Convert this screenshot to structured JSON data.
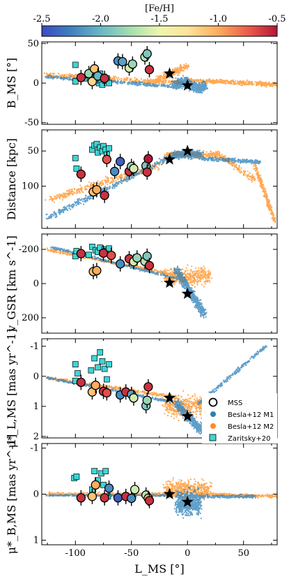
{
  "colorbar": {
    "label": "[Fe/H]",
    "ticks": [
      -2.5,
      -2.0,
      -1.5,
      -1.0,
      -0.5
    ],
    "tick_labels": [
      "-2.5",
      "-2.0",
      "-1.5",
      "-1.0",
      "-0.5"
    ],
    "range": [
      -2.5,
      -0.5
    ]
  },
  "colors": {
    "m1": "#2c7fb8",
    "m2": "#ff8c1a",
    "zaritsky": "#3fd5d5",
    "star": "#000000"
  },
  "legend": {
    "items": [
      {
        "label": "MSS",
        "marker": "circle-open"
      },
      {
        "label": "Besla+12 M1",
        "marker": "dot-m1"
      },
      {
        "label": "Besla+12 M2",
        "marker": "dot-m2"
      },
      {
        "label": "Zaritsky+20",
        "marker": "square"
      }
    ]
  },
  "chart_data": [
    {
      "type": "scatter",
      "ylabel": "B_MS [°]",
      "ylim": [
        52,
        -52
      ],
      "yticks": [
        -50,
        0,
        50
      ],
      "mss": [
        {
          "x": -95,
          "y": 7,
          "feh": -0.6
        },
        {
          "x": -88,
          "y": 12,
          "feh": -1.8
        },
        {
          "x": -85,
          "y": 2,
          "feh": -1.2
        },
        {
          "x": -83,
          "y": 18,
          "feh": -1.1
        },
        {
          "x": -80,
          "y": 9,
          "feh": -2.0
        },
        {
          "x": -74,
          "y": 6,
          "feh": -0.6
        },
        {
          "x": -62,
          "y": 28,
          "feh": -2.2
        },
        {
          "x": -58,
          "y": 27,
          "feh": -2.1
        },
        {
          "x": -52,
          "y": 19,
          "feh": -1.6
        },
        {
          "x": -49,
          "y": 24,
          "feh": -1.8
        },
        {
          "x": -38,
          "y": 33,
          "feh": -1.7
        },
        {
          "x": -36,
          "y": 37,
          "feh": -1.9
        },
        {
          "x": -34,
          "y": 17,
          "feh": -0.6
        }
      ],
      "zaritsky": [
        {
          "x": -100,
          "y": 23
        },
        {
          "x": -100,
          "y": 2
        },
        {
          "x": -92,
          "y": 6
        },
        {
          "x": -88,
          "y": 10
        },
        {
          "x": -84,
          "y": 8
        },
        {
          "x": -82,
          "y": 4
        },
        {
          "x": -79,
          "y": 0
        },
        {
          "x": -78,
          "y": 12
        },
        {
          "x": -76,
          "y": -2
        },
        {
          "x": -75,
          "y": 8
        },
        {
          "x": -73,
          "y": 3
        },
        {
          "x": -72,
          "y": 6
        },
        {
          "x": -70,
          "y": 0
        }
      ],
      "stars": [
        {
          "x": -16,
          "y": 12
        },
        {
          "x": 0,
          "y": -3
        }
      ]
    },
    {
      "type": "scatter",
      "ylabel": "Distance [kpc]",
      "ylim": [
        20,
        160
      ],
      "yticks": [
        50,
        100
      ],
      "mss": [
        {
          "x": -95,
          "y": 83,
          "feh": -0.6
        },
        {
          "x": -84,
          "y": 108,
          "feh": -1.1
        },
        {
          "x": -81,
          "y": 105,
          "feh": -1.0
        },
        {
          "x": -74,
          "y": 113,
          "feh": -0.6
        },
        {
          "x": -72,
          "y": 62,
          "feh": -0.7
        },
        {
          "x": -65,
          "y": 79,
          "feh": -2.2
        },
        {
          "x": -60,
          "y": 65,
          "feh": -2.4
        },
        {
          "x": -52,
          "y": 79,
          "feh": -0.6
        },
        {
          "x": -50,
          "y": 72,
          "feh": -1.8
        },
        {
          "x": -48,
          "y": 75,
          "feh": -1.6
        },
        {
          "x": -37,
          "y": 71,
          "feh": -1.9
        },
        {
          "x": -36,
          "y": 80,
          "feh": -0.6
        },
        {
          "x": -35,
          "y": 61,
          "feh": -0.5
        }
      ],
      "zaritsky": [
        {
          "x": -100,
          "y": 60
        },
        {
          "x": -99,
          "y": 75
        },
        {
          "x": -85,
          "y": 48
        },
        {
          "x": -83,
          "y": 42
        },
        {
          "x": -81,
          "y": 40
        },
        {
          "x": -80,
          "y": 52
        },
        {
          "x": -78,
          "y": 45
        },
        {
          "x": -76,
          "y": 50
        },
        {
          "x": -75,
          "y": 43
        },
        {
          "x": -73,
          "y": 48
        },
        {
          "x": -72,
          "y": 55
        },
        {
          "x": -70,
          "y": 46
        }
      ],
      "stars": [
        {
          "x": -16,
          "y": 62
        },
        {
          "x": 0,
          "y": 50
        }
      ]
    },
    {
      "type": "scatter",
      "ylabel": "v_GSR [km s^-1]",
      "ylim": [
        -290,
        290
      ],
      "yticks": [
        -200,
        0,
        200
      ],
      "mss": [
        {
          "x": -95,
          "y": -175,
          "feh": -0.6
        },
        {
          "x": -84,
          "y": -70,
          "feh": -1.1
        },
        {
          "x": -81,
          "y": -76,
          "feh": -1.0
        },
        {
          "x": -75,
          "y": -178,
          "feh": -0.6
        },
        {
          "x": -68,
          "y": -165,
          "feh": -0.7
        },
        {
          "x": -60,
          "y": -115,
          "feh": -2.2
        },
        {
          "x": -52,
          "y": -145,
          "feh": -0.6
        },
        {
          "x": -48,
          "y": -128,
          "feh": -1.6
        },
        {
          "x": -45,
          "y": -150,
          "feh": -1.8
        },
        {
          "x": -38,
          "y": -130,
          "feh": -1.7
        },
        {
          "x": -36,
          "y": -160,
          "feh": -1.9
        },
        {
          "x": -34,
          "y": -105,
          "feh": -0.6
        }
      ],
      "zaritsky": [
        {
          "x": -100,
          "y": -160
        },
        {
          "x": -99,
          "y": -190
        },
        {
          "x": -88,
          "y": -168
        },
        {
          "x": -85,
          "y": -215
        },
        {
          "x": -82,
          "y": -195
        },
        {
          "x": -80,
          "y": -185
        },
        {
          "x": -78,
          "y": -210
        },
        {
          "x": -76,
          "y": -178
        },
        {
          "x": -74,
          "y": -200
        },
        {
          "x": -72,
          "y": -190
        },
        {
          "x": -70,
          "y": -205
        }
      ],
      "stars": [
        {
          "x": -16,
          "y": -5
        },
        {
          "x": 0,
          "y": 60
        }
      ]
    },
    {
      "type": "scatter",
      "ylabel": "μ*_L,MS [mas yr^-1]",
      "ylim": [
        -1.25,
        2.05
      ],
      "yticks": [
        -1,
        0,
        1,
        2
      ],
      "mss": [
        {
          "x": -95,
          "y": 0.2,
          "feh": -0.6
        },
        {
          "x": -85,
          "y": 0.52,
          "feh": -1.1
        },
        {
          "x": -82,
          "y": 0.3,
          "feh": -1.0
        },
        {
          "x": -75,
          "y": 0.5,
          "feh": -0.6
        },
        {
          "x": -72,
          "y": 0.55,
          "feh": -0.7
        },
        {
          "x": -60,
          "y": 0.62,
          "feh": -2.2
        },
        {
          "x": -55,
          "y": 0.52,
          "feh": -0.6
        },
        {
          "x": -50,
          "y": 0.6,
          "feh": -2.1
        },
        {
          "x": -48,
          "y": 0.72,
          "feh": -1.6
        },
        {
          "x": -37,
          "y": 0.98,
          "feh": -1.9
        },
        {
          "x": -36,
          "y": 0.8,
          "feh": -1.8
        },
        {
          "x": -35,
          "y": 0.35,
          "feh": -0.6
        }
      ],
      "zaritsky": [
        {
          "x": -100,
          "y": 0.15
        },
        {
          "x": -100,
          "y": -0.4
        },
        {
          "x": -98,
          "y": -0.1
        },
        {
          "x": -86,
          "y": -0.2
        },
        {
          "x": -83,
          "y": -0.6
        },
        {
          "x": -80,
          "y": -0.3
        },
        {
          "x": -78,
          "y": -0.8
        },
        {
          "x": -76,
          "y": -0.5
        },
        {
          "x": -74,
          "y": -0.25
        },
        {
          "x": -72,
          "y": 0.1
        },
        {
          "x": -70,
          "y": -0.4
        }
      ],
      "stars": [
        {
          "x": -16,
          "y": 0.72
        },
        {
          "x": 0,
          "y": 1.33
        }
      ]
    },
    {
      "type": "scatter",
      "xlabel": "L_MS [°]",
      "ylabel": "μ*_B,MS [mas yr^-1]",
      "xlim": [
        -130,
        80
      ],
      "xticks": [
        -100,
        -50,
        0,
        50
      ],
      "ylim": [
        -1.1,
        1.1
      ],
      "yticks": [
        -1,
        0,
        1
      ],
      "mss": [
        {
          "x": -95,
          "y": 0.08,
          "feh": -0.6
        },
        {
          "x": -85,
          "y": 0.05,
          "feh": -1.1
        },
        {
          "x": -82,
          "y": -0.2,
          "feh": -1.0
        },
        {
          "x": -74,
          "y": 0.08,
          "feh": -0.6
        },
        {
          "x": -70,
          "y": -0.13,
          "feh": -2.2
        },
        {
          "x": -62,
          "y": 0.08,
          "feh": -2.4
        },
        {
          "x": -55,
          "y": 0.05,
          "feh": -0.6
        },
        {
          "x": -50,
          "y": 0.09,
          "feh": -2.2
        },
        {
          "x": -47,
          "y": -0.1,
          "feh": -1.6
        },
        {
          "x": -37,
          "y": 0.02,
          "feh": -1.7
        },
        {
          "x": -35,
          "y": 0.09,
          "feh": -1.1
        },
        {
          "x": -34,
          "y": 0.14,
          "feh": -0.6
        }
      ],
      "zaritsky": [
        {
          "x": -101,
          "y": -0.35
        },
        {
          "x": -99,
          "y": -0.38
        },
        {
          "x": -85,
          "y": -0.1
        },
        {
          "x": -83,
          "y": -0.5
        },
        {
          "x": -80,
          "y": -0.3
        },
        {
          "x": -77,
          "y": -0.45
        },
        {
          "x": -75,
          "y": -0.2
        },
        {
          "x": -73,
          "y": -0.5
        },
        {
          "x": -71,
          "y": 0.05
        }
      ],
      "stars": [
        {
          "x": -16,
          "y": 0.0
        },
        {
          "x": 0,
          "y": 0.17
        }
      ]
    }
  ]
}
